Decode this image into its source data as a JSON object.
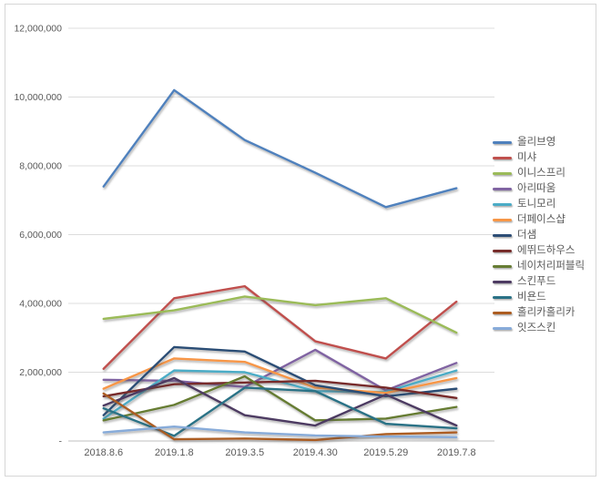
{
  "chart_data": {
    "type": "line",
    "title": "",
    "xlabel": "",
    "ylabel": "",
    "legend_position": "right",
    "grid": true,
    "ylim": [
      0,
      12000000
    ],
    "y_ticks": [
      {
        "label": "-",
        "value": 0
      },
      {
        "label": "2,000,000",
        "value": 2000000
      },
      {
        "label": "4,000,000",
        "value": 4000000
      },
      {
        "label": "6,000,000",
        "value": 6000000
      },
      {
        "label": "8,000,000",
        "value": 8000000
      },
      {
        "label": "10,000,000",
        "value": 10000000
      },
      {
        "label": "12,000,000",
        "value": 12000000
      }
    ],
    "categories": [
      "2018.8.6",
      "2019.1.8",
      "2019.3.5",
      "2019.4.30",
      "2019.5.29",
      "2019.7.8"
    ],
    "series": [
      {
        "name": "올리브영",
        "color": "#4F81BD",
        "values": [
          7400000,
          10200000,
          8750000,
          7800000,
          6800000,
          7350000
        ]
      },
      {
        "name": "미샤",
        "color": "#C0504D",
        "values": [
          2100000,
          4150000,
          4500000,
          2900000,
          2400000,
          4050000
        ]
      },
      {
        "name": "이니스프리",
        "color": "#9BBB59",
        "values": [
          3550000,
          3800000,
          4200000,
          3950000,
          4150000,
          3150000
        ]
      },
      {
        "name": "아리따움",
        "color": "#8064A2",
        "values": [
          1780000,
          1750000,
          1570000,
          2650000,
          1470000,
          2270000
        ]
      },
      {
        "name": "토니모리",
        "color": "#4BACC6",
        "values": [
          650000,
          2050000,
          2000000,
          1450000,
          1430000,
          2050000
        ]
      },
      {
        "name": "더페이스샵",
        "color": "#F79646",
        "values": [
          1520000,
          2400000,
          2300000,
          1550000,
          1400000,
          1830000
        ]
      },
      {
        "name": "더샘",
        "color": "#2C4D75",
        "values": [
          750000,
          2730000,
          2600000,
          1620000,
          1300000,
          1520000
        ]
      },
      {
        "name": "에뛰드하우스",
        "color": "#772C2A",
        "values": [
          1300000,
          1650000,
          1700000,
          1750000,
          1550000,
          1250000
        ]
      },
      {
        "name": "네이처리퍼블릭",
        "color": "#667C33",
        "values": [
          600000,
          1050000,
          1880000,
          600000,
          650000,
          990000
        ]
      },
      {
        "name": "스킨푸드",
        "color": "#4D3B62",
        "values": [
          1030000,
          1830000,
          750000,
          450000,
          1350000,
          450000
        ]
      },
      {
        "name": "비욘드",
        "color": "#2A7286",
        "values": [
          950000,
          150000,
          1550000,
          1450000,
          500000,
          370000
        ]
      },
      {
        "name": "홀리카홀리카",
        "color": "#AC5D21",
        "values": [
          1380000,
          50000,
          70000,
          30000,
          200000,
          250000
        ]
      },
      {
        "name": "잇즈스킨",
        "color": "#87ABD9",
        "values": [
          250000,
          420000,
          250000,
          160000,
          130000,
          110000
        ]
      }
    ],
    "style": {
      "grid_color": "#DCDCDC",
      "axis_color": "#BFBFBF",
      "tick_text_color": "#595959",
      "background": "#FFFFFF"
    }
  }
}
